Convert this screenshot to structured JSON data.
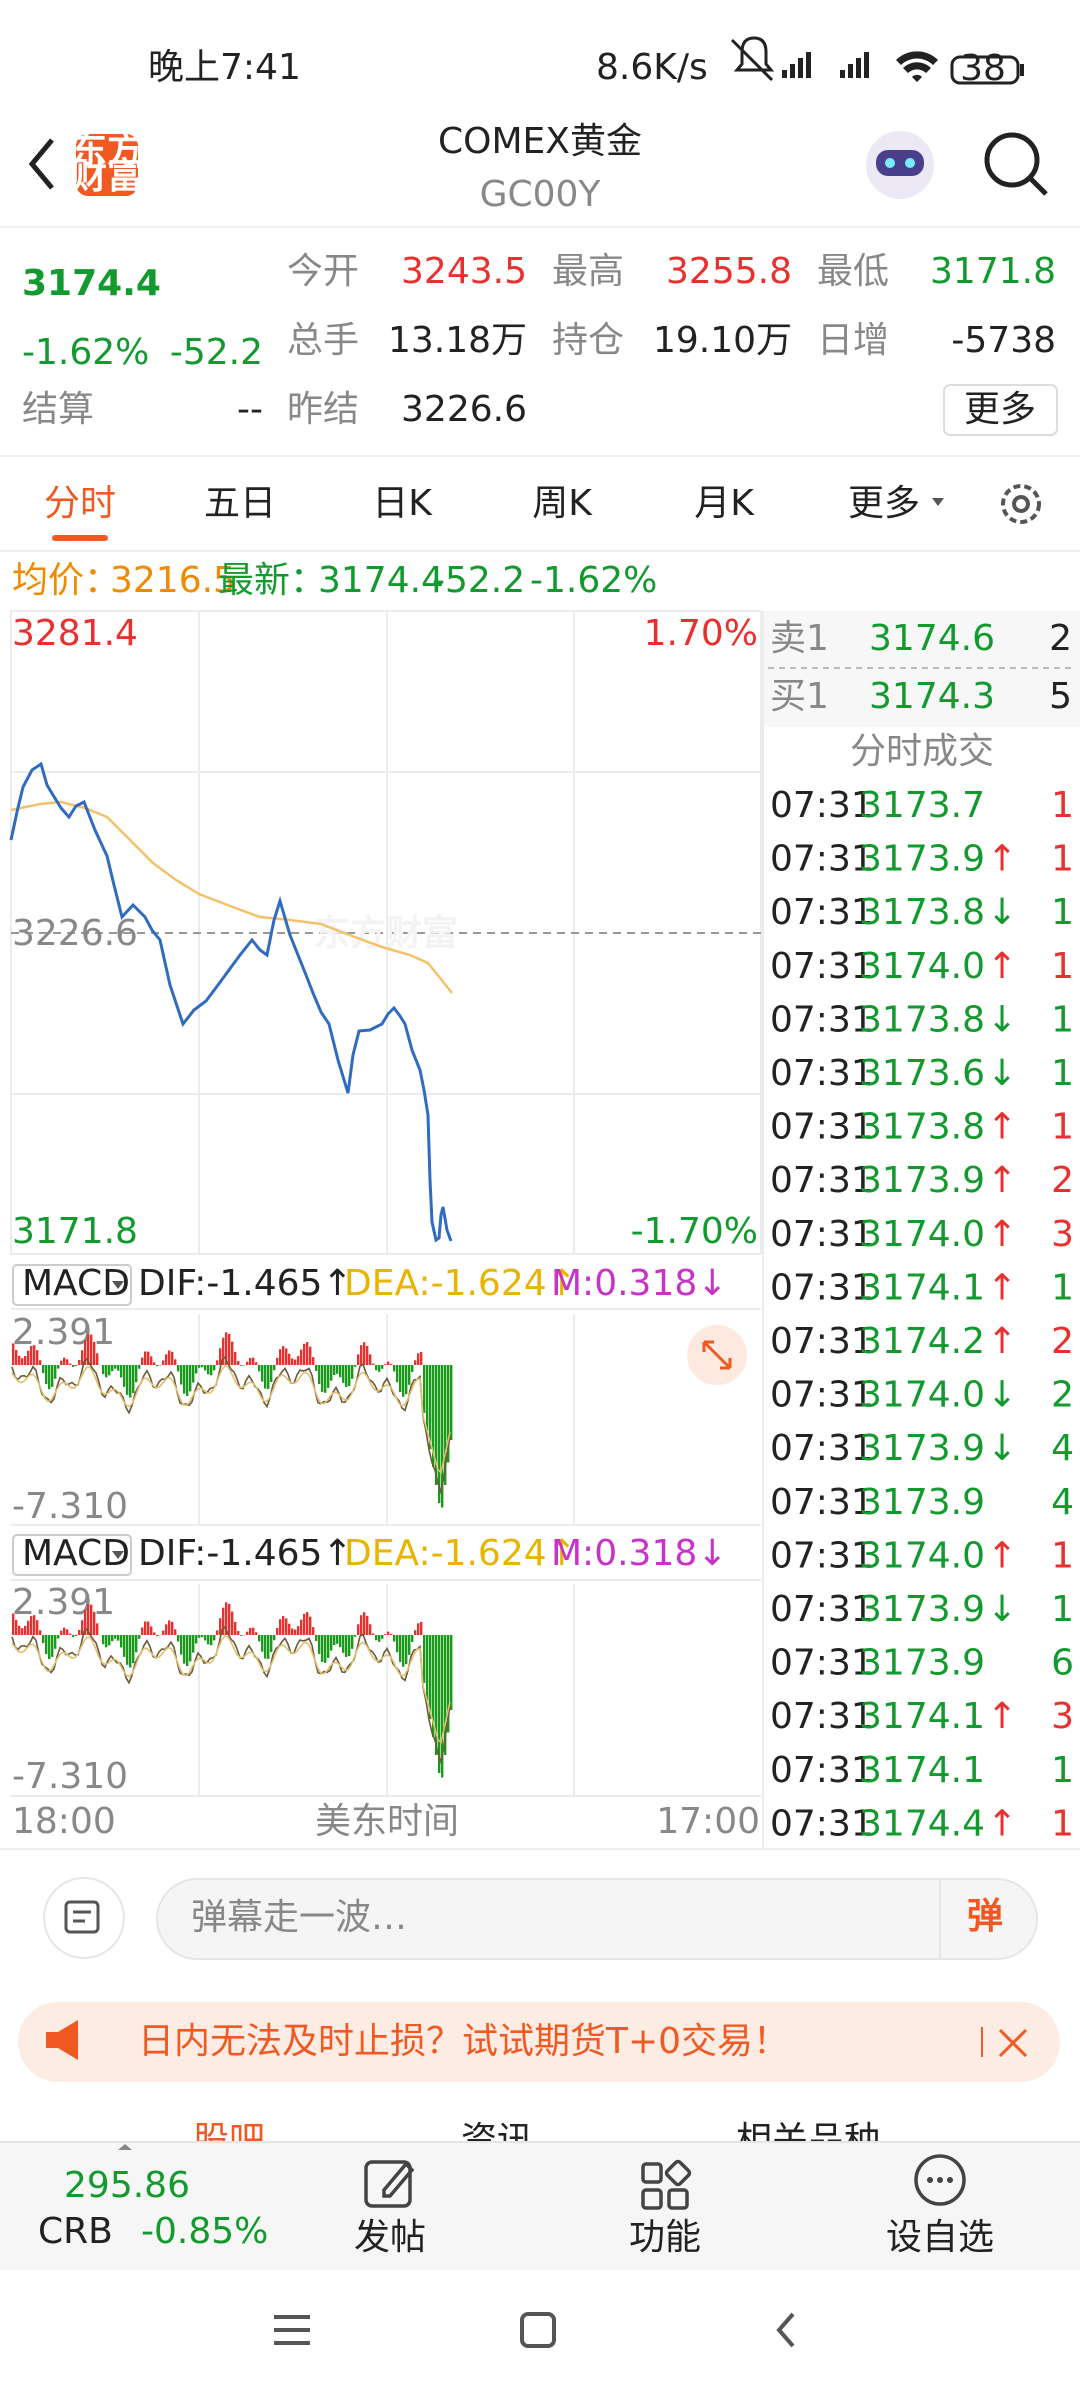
{
  "status_bar": {
    "time": "晚上7:41",
    "speed": "8.6K/s",
    "battery": "38"
  },
  "header": {
    "logo": [
      "东方",
      "财富"
    ],
    "title": "COMEX黄金",
    "code": "GC00Y"
  },
  "quote": {
    "price": "3174.4",
    "change_pct": "-1.62%",
    "change": "-52.2",
    "settle_label": "结算",
    "settle": "--",
    "prev_settle_label": "昨结",
    "prev_settle": "3226.6",
    "stats": [
      [
        "今开",
        "3243.5"
      ],
      [
        "最高",
        "3255.8"
      ],
      [
        "最低",
        "3171.8"
      ],
      [
        "总手",
        "13.18万"
      ],
      [
        "持仓",
        "19.10万"
      ],
      [
        "日增",
        "-5738"
      ]
    ],
    "more": "更多"
  },
  "tabs": [
    "分时",
    "五日",
    "日K",
    "周K",
    "月K",
    "更多"
  ],
  "info": {
    "avg_label": "均价：",
    "avg": "3216.5",
    "last_label": "最新：",
    "last": "3174.4",
    "change": "-52.2",
    "change_pct": "-1.62%"
  },
  "chart": {
    "y_top": "3281.4",
    "pct_top": "1.70%",
    "y_mid": "3226.6",
    "y_bottom": "3171.8",
    "pct_bottom": "-1.70%",
    "watermark": "东方财富",
    "x_start": "18:00",
    "x_mid": "美东时间",
    "x_end": "17:00"
  },
  "macd": [
    {
      "label": "MACD",
      "dif": "DIF:-1.465↑",
      "dea": "DEA:-1.624↑",
      "m": "M:0.318↓",
      "top": "2.391",
      "bottom": "-7.310"
    },
    {
      "label": "MACD",
      "dif": "DIF:-1.465↑",
      "dea": "DEA:-1.624↑",
      "m": "M:0.318↓",
      "top": "2.391",
      "bottom": "-7.310"
    }
  ],
  "order_book": {
    "ask": [
      "卖1",
      "3174.6",
      "2"
    ],
    "bid": [
      "买1",
      "3174.3",
      "5"
    ]
  },
  "trades": {
    "title": "分时成交",
    "rows": [
      {
        "time": "07:31",
        "price": "3173.7",
        "volume": "1",
        "color": "#e8312f"
      },
      {
        "time": "07:31",
        "price": "3173.9",
        "arrow": "↑",
        "volume": "1",
        "color": "#e8312f"
      },
      {
        "time": "07:31",
        "price": "3173.8",
        "arrow": "↓",
        "volume": "1",
        "color": "#139a2e"
      },
      {
        "time": "07:31",
        "price": "3174.0",
        "arrow": "↑",
        "volume": "1",
        "color": "#e8312f"
      },
      {
        "time": "07:31",
        "price": "3173.8",
        "arrow": "↓",
        "volume": "1",
        "color": "#139a2e"
      },
      {
        "time": "07:31",
        "price": "3173.6",
        "arrow": "↓",
        "volume": "1",
        "color": "#139a2e"
      },
      {
        "time": "07:31",
        "price": "3173.8",
        "arrow": "↑",
        "volume": "1",
        "color": "#e8312f"
      },
      {
        "time": "07:31",
        "price": "3173.9",
        "arrow": "↑",
        "volume": "2",
        "color": "#e8312f"
      },
      {
        "time": "07:31",
        "price": "3174.0",
        "arrow": "↑",
        "volume": "3",
        "color": "#e8312f"
      },
      {
        "time": "07:31",
        "price": "3174.1",
        "arrow": "↑",
        "volume": "1",
        "color": "#139a2e"
      },
      {
        "time": "07:31",
        "price": "3174.2",
        "arrow": "↑",
        "volume": "2",
        "color": "#e8312f"
      },
      {
        "time": "07:31",
        "price": "3174.0",
        "arrow": "↓",
        "volume": "2",
        "color": "#139a2e"
      },
      {
        "time": "07:31",
        "price": "3173.9",
        "arrow": "↓",
        "volume": "4",
        "color": "#139a2e"
      },
      {
        "time": "07:31",
        "price": "3173.9",
        "volume": "4",
        "color": "#139a2e"
      },
      {
        "time": "07:31",
        "price": "3174.0",
        "arrow": "↑",
        "volume": "1",
        "color": "#e8312f"
      },
      {
        "time": "07:31",
        "price": "3173.9",
        "arrow": "↓",
        "volume": "1",
        "color": "#139a2e"
      },
      {
        "time": "07:31",
        "price": "3173.9",
        "volume": "6",
        "color": "#139a2e"
      },
      {
        "time": "07:31",
        "price": "3174.1",
        "arrow": "↑",
        "volume": "3",
        "color": "#e8312f"
      },
      {
        "time": "07:31",
        "price": "3174.1",
        "volume": "1",
        "color": "#139a2e"
      },
      {
        "time": "07:31",
        "price": "3174.4",
        "arrow": "↑",
        "volume": "1",
        "color": "#e8312f"
      }
    ]
  },
  "comment": {
    "placeholder": "弹幕走一波…",
    "button": "弹"
  },
  "banner": {
    "text": "日内无法及时止损？试试期货T+0交易！"
  },
  "sub_tabs": [
    "股吧",
    "资讯",
    "相关品种"
  ],
  "bottom_bar": {
    "index_value": "295.86",
    "index_name": "CRB",
    "index_change": "-0.85%",
    "buttons": [
      "发帖",
      "功能",
      "设自选"
    ]
  }
}
